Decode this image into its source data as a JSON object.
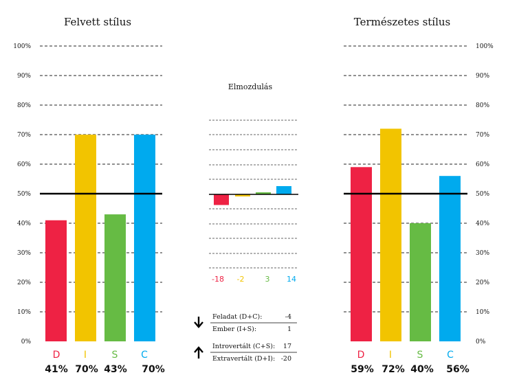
{
  "chart_data": [
    {
      "type": "bar",
      "title": "Felvett stílus",
      "categories": [
        "D",
        "I",
        "S",
        "C"
      ],
      "values": [
        41,
        70,
        43,
        70
      ],
      "value_labels": [
        "41%",
        "70%",
        "43%",
        "70%"
      ],
      "yticks": [
        "0%",
        "10%",
        "20%",
        "30%",
        "40%",
        "50%",
        "60%",
        "70%",
        "80%",
        "90%",
        "100%"
      ],
      "ylim": [
        0,
        100
      ],
      "reference_line": 50,
      "axis_side": "left"
    },
    {
      "type": "bar",
      "title": "Elmozdulás",
      "categories": [
        "D",
        "I",
        "S",
        "C"
      ],
      "values": [
        -18,
        -2,
        3,
        14
      ],
      "value_labels": [
        "-18",
        "-2",
        "3",
        "14"
      ],
      "ylim": [
        -50,
        50
      ],
      "reference_line": 0
    },
    {
      "type": "bar",
      "title": "Természetes stílus",
      "categories": [
        "D",
        "I",
        "S",
        "C"
      ],
      "values": [
        59,
        72,
        40,
        56
      ],
      "value_labels": [
        "59%",
        "72%",
        "40%",
        "56%"
      ],
      "yticks": [
        "0%",
        "10%",
        "20%",
        "30%",
        "40%",
        "50%",
        "60%",
        "70%",
        "80%",
        "90%",
        "100%"
      ],
      "ylim": [
        0,
        100
      ],
      "reference_line": 50,
      "axis_side": "right"
    }
  ],
  "colors": {
    "D": "#ee2244",
    "I": "#f2c400",
    "S": "#66bb44",
    "C": "#00aaee"
  },
  "legend": {
    "down_arrow_icon": "arrow-down-icon",
    "up_arrow_icon": "arrow-up-icon",
    "rows": [
      {
        "label": "Feladat (D+C):",
        "value": "-4"
      },
      {
        "label": "Ember (I+S):",
        "value": "1"
      },
      {
        "label": "Introvertált (C+S):",
        "value": "17"
      },
      {
        "label": "Extravertált (D+I):",
        "value": "-20"
      }
    ]
  }
}
